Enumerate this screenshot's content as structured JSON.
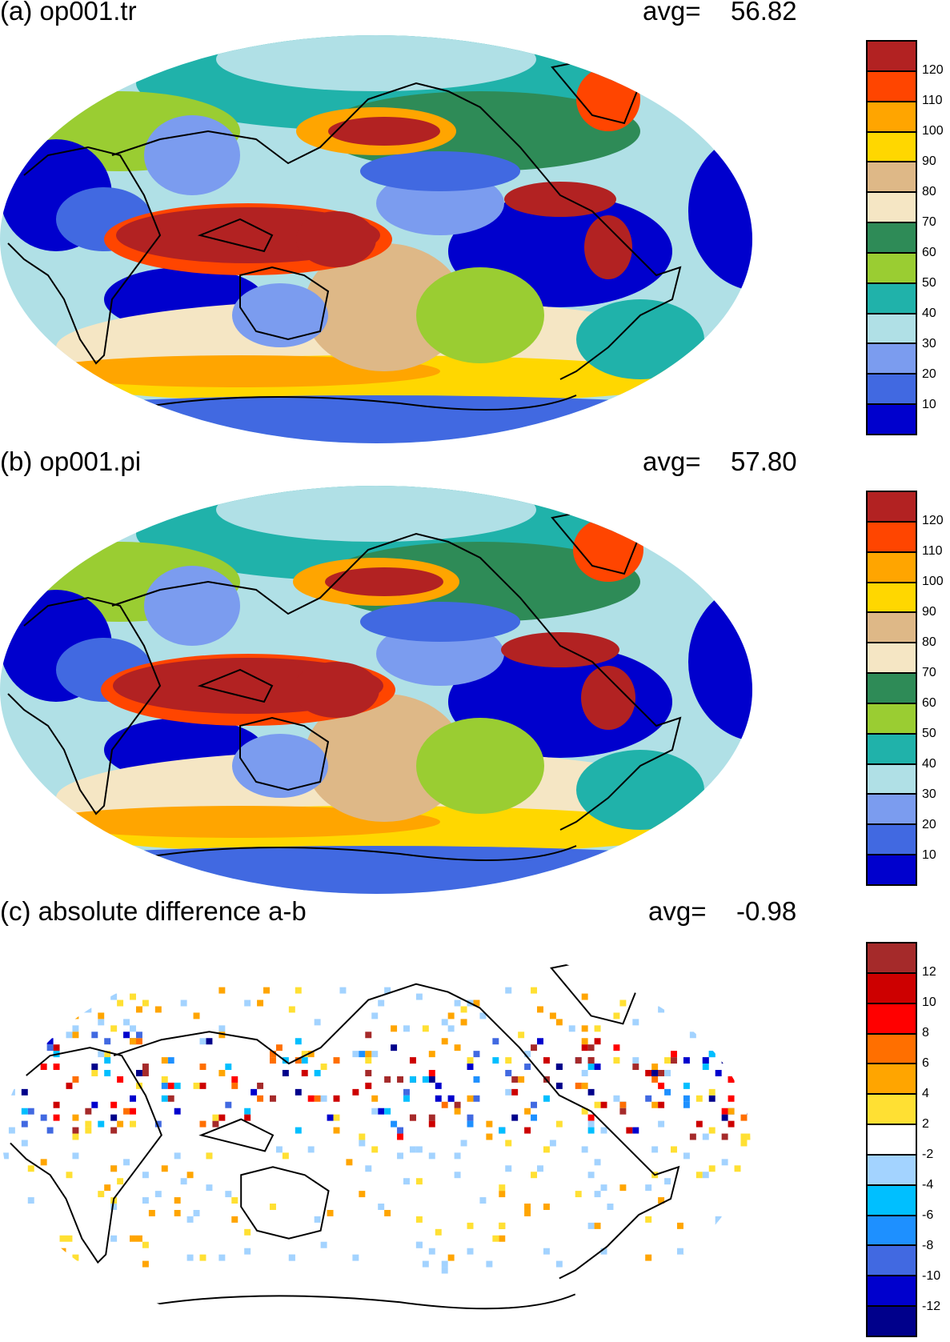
{
  "panels": [
    {
      "title": "(a) op001.tr",
      "avg_label": "avg=",
      "avg_value": "56.82"
    },
    {
      "title": "(b) op001.pi",
      "avg_label": "avg=",
      "avg_value": "57.80"
    },
    {
      "title": "(c) absolute difference a-b",
      "avg_label": "avg=",
      "avg_value": "-0.98"
    }
  ],
  "colorbar_main": {
    "labels": [
      "120",
      "110",
      "100",
      "90",
      "80",
      "70",
      "60",
      "50",
      "40",
      "30",
      "20",
      "10"
    ],
    "colors": [
      "#b22222",
      "#ff4500",
      "#ffa500",
      "#ffd700",
      "#deb887",
      "#f5e6c4",
      "#2e8b57",
      "#9acd32",
      "#20b2aa",
      "#b0e0e6",
      "#7b9cef",
      "#4169e1",
      "#0000cd"
    ]
  },
  "colorbar_diff": {
    "labels": [
      "12",
      "10",
      "8",
      "6",
      "4",
      "2",
      "-2",
      "-4",
      "-6",
      "-8",
      "-10",
      "-12"
    ],
    "colors": [
      "#a52a2a",
      "#cd0000",
      "#ff0000",
      "#ff6f00",
      "#ffa500",
      "#ffe033",
      "#ffffff",
      "#a3d3ff",
      "#00bfff",
      "#1e90ff",
      "#4169e1",
      "#0000cd",
      "#00008b"
    ]
  }
}
